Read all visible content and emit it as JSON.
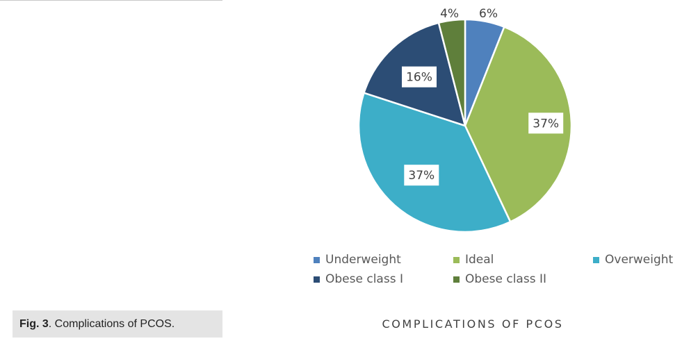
{
  "figure": {
    "label": "Fig. 3",
    "caption": ". Complications of PCOS."
  },
  "chart_data": {
    "type": "pie",
    "title": "COMPLICATIONS OF PCOS",
    "unit": "%",
    "legend_position": "bottom",
    "series": [
      {
        "name": "Underweight",
        "value": 6,
        "label": "6%",
        "color": "#4f81bd"
      },
      {
        "name": "Ideal",
        "value": 37,
        "label": "37%",
        "color": "#9bbb59"
      },
      {
        "name": "Overweight",
        "value": 37,
        "label": "37%",
        "color": "#3daec8"
      },
      {
        "name": "Obese class I",
        "value": 16,
        "label": "16%",
        "color": "#2c4d75"
      },
      {
        "name": "Obese class II",
        "value": 4,
        "label": "4%",
        "color": "#5f7f3b"
      }
    ]
  }
}
